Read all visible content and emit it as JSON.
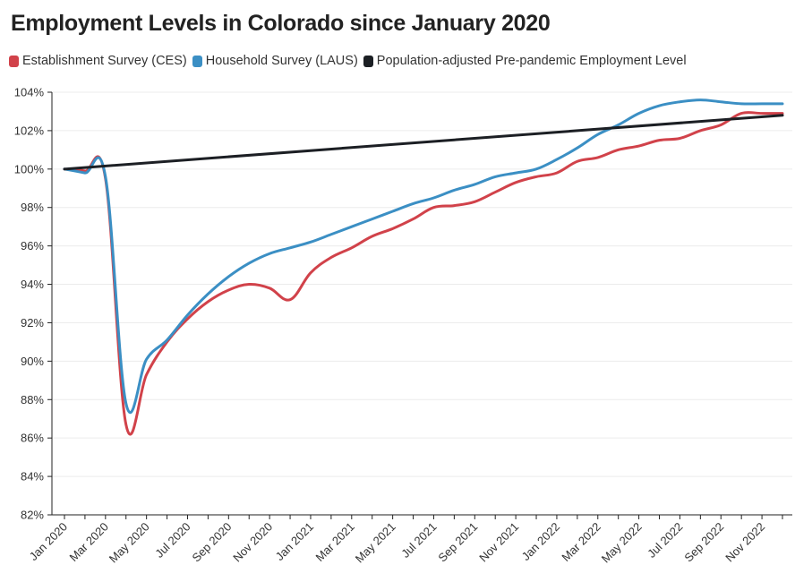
{
  "chart_data": {
    "type": "line",
    "title": "Employment Levels in Colorado since January 2020",
    "xlabel": "",
    "ylabel": "",
    "ylim": [
      82,
      104
    ],
    "y_ticks": [
      "82%",
      "84%",
      "86%",
      "88%",
      "90%",
      "92%",
      "94%",
      "96%",
      "98%",
      "100%",
      "102%",
      "104%"
    ],
    "x_range": [
      "2020-01",
      "2022-12"
    ],
    "x_tick_labels": [
      "Jan 2020",
      "Mar 2020",
      "May 2020",
      "Jul 2020",
      "Sep 2020",
      "Nov 2020",
      "Jan 2021",
      "Mar 2021",
      "May 2021",
      "Jul 2021",
      "Sep 2021",
      "Nov 2021",
      "Jan 2022",
      "Mar 2022",
      "May 2022",
      "Jul 2022",
      "Sep 2022",
      "Nov 2022"
    ],
    "x": [
      "2020-01",
      "2020-02",
      "2020-03",
      "2020-04",
      "2020-05",
      "2020-06",
      "2020-07",
      "2020-08",
      "2020-09",
      "2020-10",
      "2020-11",
      "2020-12",
      "2021-01",
      "2021-02",
      "2021-03",
      "2021-04",
      "2021-05",
      "2021-06",
      "2021-07",
      "2021-08",
      "2021-09",
      "2021-10",
      "2021-11",
      "2021-12",
      "2022-01",
      "2022-02",
      "2022-03",
      "2022-04",
      "2022-05",
      "2022-06",
      "2022-07",
      "2022-08",
      "2022-09",
      "2022-10",
      "2022-11",
      "2022-12"
    ],
    "grid": "horizontal",
    "legend_position": "top-left",
    "series": [
      {
        "name": "Establishment Survey (CES)",
        "color": "#d1424a",
        "values": [
          100.0,
          99.9,
          99.5,
          86.7,
          89.3,
          91.0,
          92.2,
          93.1,
          93.7,
          94.0,
          93.8,
          93.2,
          94.6,
          95.4,
          95.9,
          96.5,
          96.9,
          97.4,
          98.0,
          98.1,
          98.3,
          98.8,
          99.3,
          99.6,
          99.8,
          100.4,
          100.6,
          101.0,
          101.2,
          101.5,
          101.6,
          102.0,
          102.3,
          102.9,
          102.9,
          102.9
        ]
      },
      {
        "name": "Household Survey (LAUS)",
        "color": "#3b8fc4",
        "values": [
          100.0,
          99.8,
          99.6,
          87.8,
          90.1,
          91.1,
          92.4,
          93.5,
          94.4,
          95.1,
          95.6,
          95.9,
          96.2,
          96.6,
          97.0,
          97.4,
          97.8,
          98.2,
          98.5,
          98.9,
          99.2,
          99.6,
          99.8,
          100.0,
          100.5,
          101.1,
          101.8,
          102.3,
          102.9,
          103.3,
          103.5,
          103.6,
          103.5,
          103.4,
          103.4,
          103.4
        ]
      },
      {
        "name": "Population-adjusted Pre-pandemic Employment Level",
        "color": "#1c1f24",
        "values": [
          100.0,
          100.1,
          100.2,
          100.25,
          100.33,
          100.41,
          100.49,
          100.57,
          100.65,
          100.73,
          100.81,
          100.89,
          100.97,
          101.05,
          101.13,
          101.21,
          101.29,
          101.37,
          101.45,
          101.53,
          101.61,
          101.69,
          101.77,
          101.85,
          101.93,
          102.01,
          102.09,
          102.17,
          102.25,
          102.33,
          102.41,
          102.49,
          102.57,
          102.65,
          102.73,
          102.8
        ]
      }
    ]
  }
}
